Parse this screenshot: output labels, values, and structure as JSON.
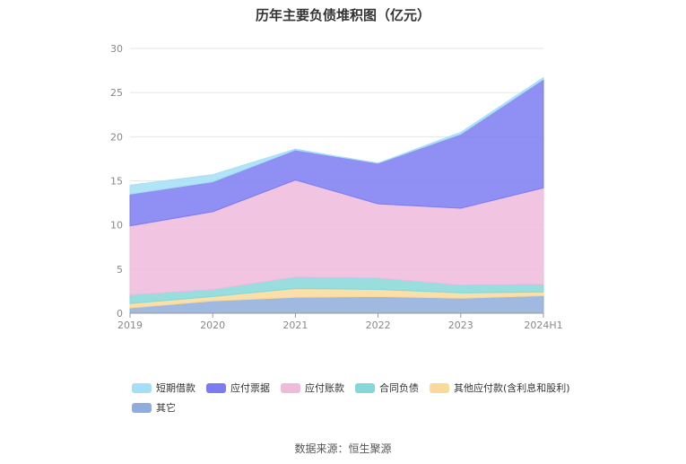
{
  "chart_data": {
    "type": "area",
    "stacked": true,
    "title": "历年主要负债堆积图（亿元）",
    "categories": [
      "2019",
      "2020",
      "2021",
      "2022",
      "2023",
      "2024H1"
    ],
    "ylim": [
      0,
      30
    ],
    "yticks": [
      "0",
      "5",
      "10",
      "15",
      "20",
      "25",
      "30"
    ],
    "grid": true,
    "legend_position": "bottom",
    "series": [
      {
        "name": "其它",
        "color": "#8eaddc",
        "values": [
          0.6,
          1.4,
          1.8,
          1.9,
          1.7,
          2.0
        ]
      },
      {
        "name": "其他应付款(含利息和股利)",
        "color": "#fad99a",
        "values": [
          0.5,
          0.5,
          1.0,
          0.8,
          0.6,
          0.4
        ]
      },
      {
        "name": "合同负债",
        "color": "#86d8d8",
        "values": [
          1.0,
          0.8,
          1.3,
          1.3,
          0.9,
          0.9
        ]
      },
      {
        "name": "应付账款",
        "color": "#eebbdd",
        "values": [
          7.8,
          8.8,
          11.0,
          8.4,
          8.7,
          10.9
        ]
      },
      {
        "name": "应付票据",
        "color": "#7b7bf2",
        "values": [
          3.6,
          3.4,
          3.4,
          4.6,
          8.4,
          12.3
        ]
      },
      {
        "name": "短期借款",
        "color": "#a5dff6",
        "values": [
          1.0,
          0.8,
          0.1,
          0.0,
          0.2,
          0.2
        ]
      }
    ]
  },
  "source_text": "数据来源：恒生聚源"
}
